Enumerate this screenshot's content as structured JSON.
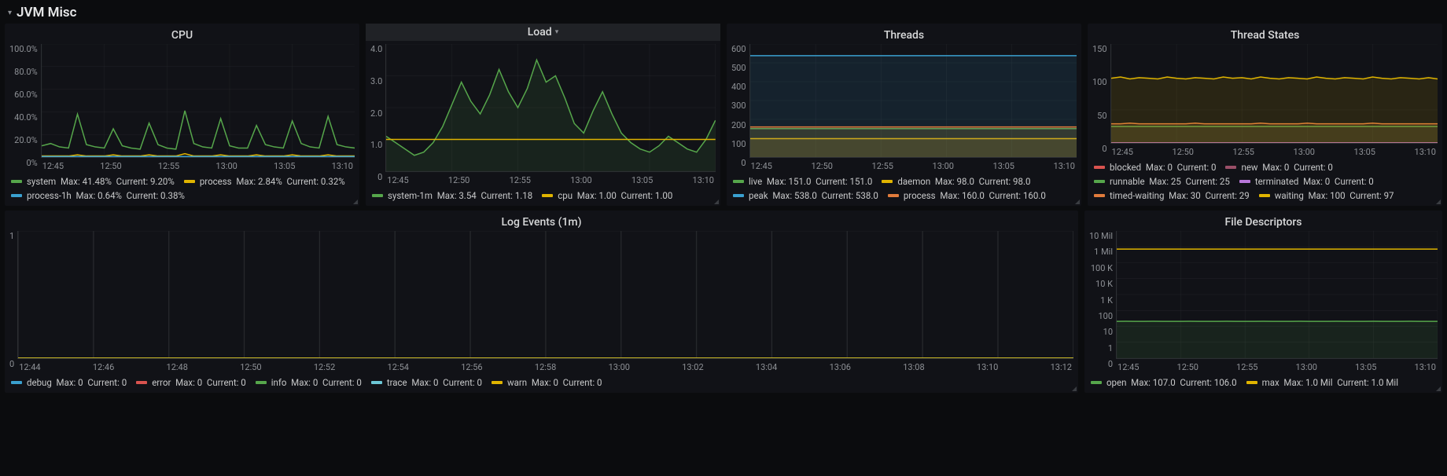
{
  "section": {
    "title": "JVM Misc"
  },
  "colors": {
    "bg": "#0b0c0e",
    "panel_bg": "#111217",
    "grid": "#26282c",
    "axis_text": "#8e9196"
  },
  "xticks_short": [
    "12:45",
    "12:50",
    "12:55",
    "13:00",
    "13:05",
    "13:10"
  ],
  "xticks_log": [
    "12:44",
    "12:46",
    "12:48",
    "12:50",
    "12:52",
    "12:54",
    "12:56",
    "12:58",
    "13:00",
    "13:02",
    "13:04",
    "13:06",
    "13:08",
    "13:10",
    "13:12"
  ],
  "panels": {
    "cpu": {
      "title": "CPU",
      "type": "line",
      "ylim": [
        0,
        100
      ],
      "ytick_step": 20,
      "yformat": "percent",
      "yticks": [
        "100.0%",
        "80.0%",
        "60.0%",
        "40.0%",
        "20.0%",
        "0%"
      ],
      "series": [
        {
          "name": "system",
          "color": "#56a64b",
          "max": "41.48%",
          "current": "9.20%",
          "fill": false,
          "values": [
            10,
            12,
            9,
            8,
            38,
            11,
            9,
            8,
            25,
            10,
            8,
            7,
            30,
            11,
            8,
            7,
            41,
            12,
            9,
            8,
            34,
            10,
            8,
            8,
            28,
            11,
            9,
            8,
            32,
            12,
            9,
            8,
            36,
            11,
            9,
            8
          ]
        },
        {
          "name": "process",
          "color": "#e0b400",
          "max": "2.84%",
          "current": "0.32%",
          "fill": false,
          "values": [
            1,
            1,
            1,
            1,
            2,
            1,
            1,
            1,
            2,
            1,
            1,
            1,
            2,
            1,
            1,
            1,
            3,
            1,
            1,
            1,
            2,
            1,
            1,
            1,
            2,
            1,
            1,
            1,
            2,
            1,
            1,
            1,
            2,
            1,
            1,
            1
          ]
        },
        {
          "name": "process-1h",
          "color": "#3aa0cf",
          "max": "0.64%",
          "current": "0.38%",
          "fill": false,
          "values": [
            0.5,
            0.5,
            0.5,
            0.5,
            0.5,
            0.5,
            0.5,
            0.5,
            0.5,
            0.5,
            0.5,
            0.5,
            0.5,
            0.5,
            0.5,
            0.5,
            0.5,
            0.5,
            0.5,
            0.5,
            0.5,
            0.5,
            0.5,
            0.5,
            0.5,
            0.5,
            0.5,
            0.5,
            0.5,
            0.5,
            0.5,
            0.5,
            0.5,
            0.5,
            0.5,
            0.5
          ]
        }
      ]
    },
    "load": {
      "title": "Load",
      "type": "area",
      "ylim": [
        0,
        4
      ],
      "ytick_step": 1,
      "yformat": "float",
      "yticks": [
        "4.0",
        "3.0",
        "2.0",
        "1.0",
        "0"
      ],
      "selected": true,
      "series": [
        {
          "name": "system-1m",
          "color": "#56a64b",
          "max": "3.54",
          "current": "1.18",
          "fill": true,
          "values": [
            1.1,
            0.9,
            0.7,
            0.5,
            0.6,
            0.9,
            1.4,
            2.1,
            2.8,
            2.2,
            1.8,
            2.4,
            3.2,
            2.5,
            2.0,
            2.6,
            3.5,
            2.8,
            3.0,
            2.3,
            1.5,
            1.2,
            1.9,
            2.5,
            1.8,
            1.2,
            0.9,
            0.7,
            0.6,
            0.8,
            1.1,
            0.9,
            0.7,
            0.6,
            1.0,
            1.6
          ]
        },
        {
          "name": "cpu",
          "color": "#e0b400",
          "max": "1.00",
          "current": "1.00",
          "fill": false,
          "values": [
            1,
            1,
            1,
            1,
            1,
            1,
            1,
            1,
            1,
            1,
            1,
            1,
            1,
            1,
            1,
            1,
            1,
            1,
            1,
            1,
            1,
            1,
            1,
            1,
            1,
            1,
            1,
            1,
            1,
            1,
            1,
            1,
            1,
            1,
            1,
            1
          ]
        }
      ]
    },
    "threads": {
      "title": "Threads",
      "type": "area",
      "ylim": [
        0,
        600
      ],
      "ytick_step": 100,
      "yticks": [
        "600",
        "500",
        "400",
        "300",
        "200",
        "100",
        "0"
      ],
      "series": [
        {
          "name": "live",
          "color": "#56a64b",
          "max": "151.0",
          "current": "151.0",
          "fill": true,
          "values": [
            151,
            151,
            151,
            151,
            151,
            151,
            151,
            151,
            151,
            151,
            151,
            151,
            151,
            151,
            151,
            151,
            151,
            151,
            151,
            151,
            151,
            151,
            151,
            151,
            151,
            151,
            151,
            151,
            151,
            151,
            151,
            151,
            151,
            151,
            151,
            151
          ]
        },
        {
          "name": "daemon",
          "color": "#e0b400",
          "max": "98.0",
          "current": "98.0",
          "fill": true,
          "values": [
            98,
            98,
            98,
            98,
            98,
            98,
            98,
            98,
            98,
            98,
            98,
            98,
            98,
            98,
            98,
            98,
            98,
            98,
            98,
            98,
            98,
            98,
            98,
            98,
            98,
            98,
            98,
            98,
            98,
            98,
            98,
            98,
            98,
            98,
            98,
            98
          ]
        },
        {
          "name": "peak",
          "color": "#3aa0cf",
          "max": "538.0",
          "current": "538.0",
          "fill": true,
          "values": [
            538,
            538,
            538,
            538,
            538,
            538,
            538,
            538,
            538,
            538,
            538,
            538,
            538,
            538,
            538,
            538,
            538,
            538,
            538,
            538,
            538,
            538,
            538,
            538,
            538,
            538,
            538,
            538,
            538,
            538,
            538,
            538,
            538,
            538,
            538,
            538
          ]
        },
        {
          "name": "process",
          "color": "#e07b3c",
          "max": "160.0",
          "current": "160.0",
          "fill": true,
          "values": [
            160,
            160,
            160,
            160,
            160,
            160,
            160,
            160,
            160,
            160,
            160,
            160,
            160,
            160,
            160,
            160,
            160,
            160,
            160,
            160,
            160,
            160,
            160,
            160,
            160,
            160,
            160,
            160,
            160,
            160,
            160,
            160,
            160,
            160,
            160,
            160
          ]
        }
      ]
    },
    "thread_states": {
      "title": "Thread States",
      "type": "area",
      "ylim": [
        0,
        150
      ],
      "ytick_step": 50,
      "yticks": [
        "150",
        "100",
        "50",
        "0"
      ],
      "series": [
        {
          "name": "blocked",
          "color": "#d9534f",
          "max": "0",
          "current": "0",
          "fill": false,
          "values": [
            0,
            0,
            0,
            0,
            0,
            0,
            0,
            0,
            0,
            0,
            0,
            0,
            0,
            0,
            0,
            0,
            0,
            0,
            0,
            0,
            0,
            0,
            0,
            0,
            0,
            0,
            0,
            0,
            0,
            0,
            0,
            0,
            0,
            0,
            0,
            0
          ]
        },
        {
          "name": "new",
          "color": "#9a4f68",
          "max": "0",
          "current": "0",
          "fill": false,
          "values": [
            0,
            0,
            0,
            0,
            0,
            0,
            0,
            0,
            0,
            0,
            0,
            0,
            0,
            0,
            0,
            0,
            0,
            0,
            0,
            0,
            0,
            0,
            0,
            0,
            0,
            0,
            0,
            0,
            0,
            0,
            0,
            0,
            0,
            0,
            0,
            0
          ]
        },
        {
          "name": "runnable",
          "color": "#56a64b",
          "max": "25",
          "current": "25",
          "fill": true,
          "values": [
            25,
            25,
            25,
            25,
            25,
            25,
            25,
            25,
            25,
            25,
            25,
            25,
            25,
            25,
            25,
            25,
            25,
            25,
            25,
            25,
            25,
            25,
            25,
            25,
            25,
            25,
            25,
            25,
            25,
            25,
            25,
            25,
            25,
            25,
            25,
            25
          ]
        },
        {
          "name": "terminated",
          "color": "#b877d9",
          "max": "0",
          "current": "0",
          "fill": false,
          "values": [
            0,
            0,
            0,
            0,
            0,
            0,
            0,
            0,
            0,
            0,
            0,
            0,
            0,
            0,
            0,
            0,
            0,
            0,
            0,
            0,
            0,
            0,
            0,
            0,
            0,
            0,
            0,
            0,
            0,
            0,
            0,
            0,
            0,
            0,
            0,
            0
          ]
        },
        {
          "name": "timed-waiting",
          "color": "#e07b3c",
          "max": "30",
          "current": "29",
          "fill": true,
          "values": [
            29,
            29,
            30,
            29,
            29,
            29,
            29,
            29,
            29,
            30,
            29,
            29,
            29,
            29,
            29,
            29,
            30,
            29,
            29,
            29,
            29,
            30,
            29,
            29,
            29,
            29,
            29,
            29,
            30,
            29,
            29,
            29,
            29,
            29,
            29,
            29
          ]
        },
        {
          "name": "waiting",
          "color": "#e0b400",
          "max": "100",
          "current": "97",
          "fill": true,
          "values": [
            98,
            100,
            97,
            99,
            98,
            97,
            100,
            98,
            97,
            99,
            98,
            97,
            100,
            98,
            99,
            97,
            100,
            98,
            97,
            99,
            98,
            97,
            100,
            98,
            97,
            99,
            98,
            97,
            100,
            98,
            97,
            99,
            98,
            97,
            99,
            97
          ]
        }
      ]
    },
    "log_events": {
      "title": "Log Events (1m)",
      "type": "line",
      "ylim": [
        0,
        1
      ],
      "ytick_step": 1,
      "yticks": [
        "1",
        "0"
      ],
      "xticks_key": "xticks_log",
      "series": [
        {
          "name": "debug",
          "color": "#3aa0cf",
          "max": "0",
          "current": "0",
          "fill": false,
          "values": [
            0,
            0,
            0,
            0,
            0,
            0,
            0,
            0,
            0,
            0,
            0,
            0,
            0,
            0,
            0,
            0,
            0,
            0,
            0,
            0,
            0,
            0,
            0,
            0,
            0,
            0,
            0,
            0,
            0,
            0,
            0,
            0,
            0,
            0,
            0,
            0
          ]
        },
        {
          "name": "error",
          "color": "#d9534f",
          "max": "0",
          "current": "0",
          "fill": false,
          "values": [
            0,
            0,
            0,
            0,
            0,
            0,
            0,
            0,
            0,
            0,
            0,
            0,
            0,
            0,
            0,
            0,
            0,
            0,
            0,
            0,
            0,
            0,
            0,
            0,
            0,
            0,
            0,
            0,
            0,
            0,
            0,
            0,
            0,
            0,
            0,
            0
          ]
        },
        {
          "name": "info",
          "color": "#56a64b",
          "max": "0",
          "current": "0",
          "fill": false,
          "values": [
            0,
            0,
            0,
            0,
            0,
            0,
            0,
            0,
            0,
            0,
            0,
            0,
            0,
            0,
            0,
            0,
            0,
            0,
            0,
            0,
            0,
            0,
            0,
            0,
            0,
            0,
            0,
            0,
            0,
            0,
            0,
            0,
            0,
            0,
            0,
            0
          ]
        },
        {
          "name": "trace",
          "color": "#6cc7d6",
          "max": "0",
          "current": "0",
          "fill": false,
          "values": [
            0,
            0,
            0,
            0,
            0,
            0,
            0,
            0,
            0,
            0,
            0,
            0,
            0,
            0,
            0,
            0,
            0,
            0,
            0,
            0,
            0,
            0,
            0,
            0,
            0,
            0,
            0,
            0,
            0,
            0,
            0,
            0,
            0,
            0,
            0,
            0
          ]
        },
        {
          "name": "warn",
          "color": "#e0b400",
          "max": "0",
          "current": "0",
          "fill": false,
          "values": [
            0,
            0,
            0,
            0,
            0,
            0,
            0,
            0,
            0,
            0,
            0,
            0,
            0,
            0,
            0,
            0,
            0,
            0,
            0,
            0,
            0,
            0,
            0,
            0,
            0,
            0,
            0,
            0,
            0,
            0,
            0,
            0,
            0,
            0,
            0,
            0
          ]
        }
      ]
    },
    "file_descriptors": {
      "title": "File Descriptors",
      "type": "line",
      "yscale": "log",
      "ylim": [
        0,
        10000000
      ],
      "yticks": [
        "10 Mil",
        "1 Mil",
        "100 K",
        "10 K",
        "1 K",
        "100",
        "10",
        "1",
        "0"
      ],
      "series": [
        {
          "name": "open",
          "color": "#56a64b",
          "max": "107.0",
          "current": "106.0",
          "fill": true,
          "values": [
            106,
            107,
            106,
            106,
            107,
            106,
            106,
            106,
            107,
            106,
            106,
            106,
            107,
            106,
            106,
            106,
            107,
            106,
            106,
            106,
            107,
            106,
            106,
            106,
            107,
            106,
            106,
            106,
            107,
            106,
            106,
            106,
            107,
            106,
            106,
            106
          ]
        },
        {
          "name": "max",
          "color": "#e0b400",
          "max": "1.0 Mil",
          "current": "1.0 Mil",
          "fill": false,
          "values": [
            1000000,
            1000000,
            1000000,
            1000000,
            1000000,
            1000000,
            1000000,
            1000000,
            1000000,
            1000000,
            1000000,
            1000000,
            1000000,
            1000000,
            1000000,
            1000000,
            1000000,
            1000000,
            1000000,
            1000000,
            1000000,
            1000000,
            1000000,
            1000000,
            1000000,
            1000000,
            1000000,
            1000000,
            1000000,
            1000000,
            1000000,
            1000000,
            1000000,
            1000000,
            1000000,
            1000000
          ]
        }
      ]
    }
  }
}
